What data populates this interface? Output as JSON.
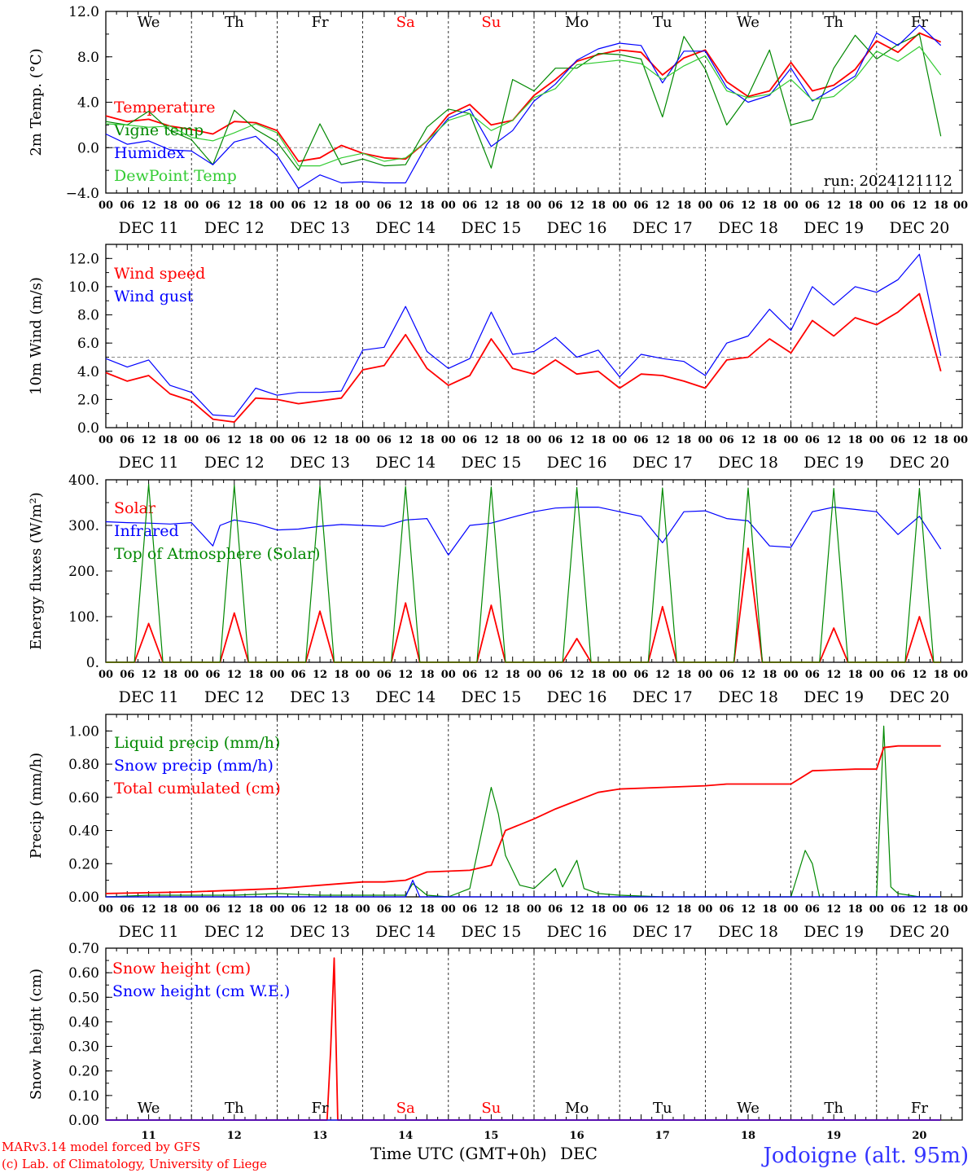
{
  "colors": {
    "red": "#ff0000",
    "blue": "#0000ff",
    "green": "#008800",
    "lightgreen": "#33cc33",
    "black": "#000000",
    "grey": "#888888"
  },
  "day_letters": [
    "We",
    "Th",
    "Fr",
    "Sa",
    "Su",
    "Mo",
    "Tu",
    "We",
    "Th",
    "Fr"
  ],
  "weekend_indices": [
    3,
    4
  ],
  "date_labels": [
    "DEC 11",
    "DEC 12",
    "DEC 13",
    "DEC 14",
    "DEC 15",
    "DEC 16",
    "DEC 17",
    "DEC 18",
    "DEC 19",
    "DEC 20"
  ],
  "hour_ticks": [
    "00",
    "06",
    "12",
    "18"
  ],
  "hour_end": "00",
  "bottom_day_numbers": [
    "11",
    "12",
    "13",
    "14",
    "15",
    "16",
    "17",
    "18",
    "19",
    "20"
  ],
  "footer": {
    "model": "MARv3.14 model forced by GFS",
    "copyright": "(c) Lab. of Climatology, University of Liege",
    "axis_title": "Time UTC (GMT+0h)",
    "month": "DEC",
    "station": "Jodoigne (alt. 95m)"
  },
  "chart_data": [
    {
      "type": "line",
      "ylabel": "2m Temp. (°C)",
      "ylim": [
        -4,
        12
      ],
      "yticks": [
        "12.0",
        "8.0",
        "4.0",
        "0.0",
        "−4.0"
      ],
      "reference_line": 0,
      "annotation": "run: 2024121112",
      "x_unit": "hours from 2024-12-11 00 UTC",
      "series": [
        {
          "name": "Temperature",
          "color": "red",
          "x": [
            0,
            6,
            12,
            18,
            24,
            30,
            36,
            42,
            48,
            54,
            60,
            66,
            72,
            78,
            84,
            90,
            96,
            102,
            108,
            114,
            120,
            126,
            132,
            138,
            144,
            150,
            156,
            162,
            168,
            174,
            180,
            186,
            192,
            198,
            204,
            210,
            216,
            222,
            228,
            234
          ],
          "y": [
            2.8,
            2.3,
            2.5,
            1.9,
            1.6,
            1.2,
            2.3,
            2.2,
            1.5,
            -1.2,
            -0.9,
            0.2,
            -0.5,
            -0.9,
            -1.0,
            0.6,
            2.9,
            3.8,
            2.0,
            2.4,
            4.6,
            6.0,
            7.6,
            8.2,
            8.6,
            8.4,
            6.4,
            7.9,
            8.6,
            5.8,
            4.5,
            5.0,
            7.5,
            5.0,
            5.5,
            6.9,
            9.4,
            8.4,
            10.1,
            9.3
          ]
        },
        {
          "name": "Vigne temp",
          "color": "green",
          "x": [
            0,
            6,
            12,
            18,
            24,
            30,
            36,
            42,
            48,
            54,
            60,
            66,
            72,
            78,
            84,
            90,
            96,
            102,
            108,
            114,
            120,
            126,
            132,
            138,
            144,
            150,
            156,
            162,
            168,
            174,
            180,
            186,
            192,
            198,
            204,
            210,
            216,
            222,
            228,
            234
          ],
          "y": [
            2.3,
            2.0,
            3.2,
            1.5,
            0.7,
            -1.5,
            3.3,
            1.6,
            0.5,
            -2.0,
            2.1,
            -1.5,
            -1.0,
            -1.6,
            -1.5,
            1.8,
            3.4,
            3.0,
            -1.8,
            6.0,
            5.0,
            7.0,
            7.0,
            8.3,
            8.2,
            7.8,
            2.7,
            9.8,
            6.9,
            2.0,
            4.6,
            8.6,
            2.0,
            2.5,
            7.0,
            9.9,
            7.8,
            9.1,
            10.0,
            1.0
          ]
        },
        {
          "name": "Humidex",
          "color": "blue",
          "x": [
            0,
            6,
            12,
            18,
            24,
            30,
            36,
            42,
            48,
            54,
            60,
            66,
            72,
            78,
            84,
            90,
            96,
            102,
            108,
            114,
            120,
            126,
            132,
            138,
            144,
            150,
            156,
            162,
            168,
            174,
            180,
            186,
            192,
            198,
            204,
            210,
            216,
            222,
            228,
            234
          ],
          "y": [
            1.2,
            0.3,
            0.6,
            -0.2,
            -0.3,
            -1.5,
            0.5,
            1.0,
            -0.7,
            -3.6,
            -2.4,
            -3.1,
            -3.0,
            -3.1,
            -3.1,
            0.3,
            2.6,
            3.4,
            0.1,
            1.5,
            4.1,
            5.6,
            7.7,
            8.7,
            9.2,
            9.0,
            5.7,
            8.5,
            8.5,
            5.3,
            4.0,
            4.6,
            7.0,
            4.1,
            5.2,
            6.3,
            10.1,
            9.0,
            10.8,
            9.0
          ]
        },
        {
          "name": "DewPoint Temp",
          "color": "lightgreen",
          "x": [
            0,
            6,
            12,
            18,
            24,
            30,
            36,
            42,
            48,
            54,
            60,
            66,
            72,
            78,
            84,
            90,
            96,
            102,
            108,
            114,
            120,
            126,
            132,
            138,
            144,
            150,
            156,
            162,
            168,
            174,
            180,
            186,
            192,
            198,
            204,
            210,
            216,
            222,
            228,
            234
          ],
          "y": [
            2.1,
            2.0,
            1.8,
            1.9,
            0.9,
            0.6,
            1.3,
            2.1,
            1.3,
            -1.6,
            -1.6,
            -0.9,
            -0.5,
            -1.2,
            -0.9,
            0.6,
            2.4,
            3.0,
            1.5,
            2.4,
            4.4,
            5.2,
            7.3,
            7.5,
            7.7,
            7.4,
            6.0,
            7.2,
            8.1,
            5.0,
            4.4,
            4.7,
            6.0,
            4.2,
            4.5,
            6.1,
            8.5,
            7.6,
            8.9,
            6.4
          ]
        }
      ]
    },
    {
      "type": "line",
      "ylabel": "10m Wind (m/s)",
      "ylim": [
        0,
        13
      ],
      "yticks": [
        "12.0",
        "10.0",
        "8.0",
        "6.0",
        "4.0",
        "2.0",
        "0.0"
      ],
      "reference_line": 5,
      "series": [
        {
          "name": "Wind speed",
          "color": "red",
          "x": [
            0,
            6,
            12,
            18,
            24,
            30,
            36,
            42,
            48,
            54,
            60,
            66,
            72,
            78,
            84,
            90,
            96,
            102,
            108,
            114,
            120,
            126,
            132,
            138,
            144,
            150,
            156,
            162,
            168,
            174,
            180,
            186,
            192,
            198,
            204,
            210,
            216,
            222,
            228,
            234
          ],
          "y": [
            3.9,
            3.3,
            3.7,
            2.4,
            1.9,
            0.6,
            0.4,
            2.1,
            2.0,
            1.7,
            1.9,
            2.1,
            4.1,
            4.4,
            6.6,
            4.2,
            3.0,
            3.7,
            6.3,
            4.2,
            3.8,
            4.8,
            3.8,
            4.0,
            2.8,
            3.8,
            3.7,
            3.3,
            2.8,
            4.8,
            5.0,
            6.3,
            5.3,
            7.6,
            6.5,
            7.8,
            7.3,
            8.2,
            9.5,
            4.0
          ]
        },
        {
          "name": "Wind gust",
          "color": "blue",
          "x": [
            0,
            6,
            12,
            18,
            24,
            30,
            36,
            42,
            48,
            54,
            60,
            66,
            72,
            78,
            84,
            90,
            96,
            102,
            108,
            114,
            120,
            126,
            132,
            138,
            144,
            150,
            156,
            162,
            168,
            174,
            180,
            186,
            192,
            198,
            204,
            210,
            216,
            222,
            228,
            234
          ],
          "y": [
            4.9,
            4.3,
            4.8,
            3.0,
            2.5,
            0.9,
            0.8,
            2.8,
            2.3,
            2.5,
            2.5,
            2.6,
            5.5,
            5.7,
            8.6,
            5.4,
            4.2,
            4.9,
            8.2,
            5.2,
            5.4,
            6.4,
            5.0,
            5.5,
            3.6,
            5.2,
            4.9,
            4.7,
            3.7,
            6.0,
            6.5,
            8.4,
            6.9,
            10.0,
            8.7,
            10.0,
            9.6,
            10.5,
            12.3,
            5.1
          ]
        }
      ]
    },
    {
      "type": "line",
      "ylabel": "Energy fluxes (W/m²)",
      "ylim": [
        0,
        400
      ],
      "yticks": [
        "400.",
        "300.",
        "200.",
        "100.",
        "0."
      ],
      "series": [
        {
          "name": "Solar",
          "color": "red",
          "x": [
            0,
            6,
            8,
            12,
            16,
            18,
            30,
            32,
            36,
            40,
            42,
            54,
            56,
            60,
            64,
            66,
            78,
            80,
            84,
            88,
            90,
            102,
            104,
            108,
            112,
            114,
            126,
            128,
            132,
            136,
            138,
            150,
            152,
            156,
            160,
            162,
            174,
            176,
            180,
            184,
            186,
            198,
            200,
            204,
            208,
            210,
            222,
            224,
            228,
            232,
            234
          ],
          "y": [
            0,
            0,
            0,
            85,
            0,
            0,
            0,
            0,
            108,
            0,
            0,
            0,
            0,
            112,
            0,
            0,
            0,
            0,
            130,
            0,
            0,
            0,
            0,
            125,
            0,
            0,
            0,
            0,
            52,
            0,
            0,
            0,
            0,
            122,
            0,
            0,
            0,
            0,
            250,
            0,
            0,
            0,
            0,
            75,
            0,
            0,
            0,
            0,
            100,
            0,
            0
          ]
        },
        {
          "name": "Infrared",
          "color": "blue",
          "x": [
            0,
            6,
            12,
            18,
            24,
            30,
            32,
            36,
            42,
            48,
            54,
            60,
            66,
            72,
            78,
            84,
            90,
            96,
            102,
            108,
            114,
            120,
            126,
            132,
            138,
            144,
            150,
            156,
            162,
            168,
            174,
            180,
            186,
            192,
            198,
            204,
            210,
            216,
            222,
            228,
            234
          ],
          "y": [
            308,
            306,
            305,
            303,
            306,
            255,
            300,
            312,
            304,
            290,
            292,
            298,
            302,
            300,
            298,
            312,
            315,
            235,
            300,
            305,
            318,
            330,
            338,
            340,
            340,
            330,
            320,
            262,
            330,
            332,
            315,
            310,
            255,
            252,
            330,
            340,
            335,
            330,
            280,
            320,
            248
          ]
        },
        {
          "name": "Top of Atmosphere (Solar)",
          "color": "green",
          "x": [
            0,
            8,
            12,
            16,
            18,
            32,
            36,
            40,
            42,
            56,
            60,
            64,
            66,
            80,
            84,
            88,
            90,
            104,
            108,
            112,
            114,
            128,
            132,
            136,
            138,
            152,
            156,
            160,
            162,
            176,
            180,
            184,
            186,
            200,
            204,
            208,
            210,
            224,
            228,
            232,
            234
          ],
          "y": [
            0,
            0,
            390,
            0,
            0,
            0,
            388,
            0,
            0,
            0,
            387,
            0,
            0,
            0,
            385,
            0,
            0,
            0,
            384,
            0,
            0,
            0,
            383,
            0,
            0,
            0,
            382,
            0,
            0,
            0,
            382,
            0,
            0,
            0,
            381,
            0,
            0,
            0,
            381,
            0,
            0
          ]
        }
      ]
    },
    {
      "type": "line",
      "ylabel": "Precip (mm/h)",
      "ylim": [
        0,
        1.1
      ],
      "yticks": [
        "1.00",
        "0.80",
        "0.60",
        "0.40",
        "0.20",
        "0.00"
      ],
      "series": [
        {
          "name": "Liquid precip (mm/h)",
          "color": "green",
          "x": [
            0,
            12,
            24,
            36,
            48,
            60,
            72,
            84,
            86,
            90,
            96,
            102,
            108,
            110,
            112,
            116,
            120,
            126,
            128,
            132,
            134,
            138,
            144,
            156,
            168,
            192,
            196,
            198,
            200,
            202,
            216,
            218,
            220,
            222,
            228,
            234
          ],
          "y": [
            0,
            0.01,
            0.01,
            0.01,
            0.02,
            0.01,
            0.01,
            0.01,
            0.08,
            0.01,
            0.0,
            0.05,
            0.66,
            0.5,
            0.25,
            0.07,
            0.05,
            0.17,
            0.06,
            0.22,
            0.05,
            0.02,
            0.01,
            0.0,
            0.0,
            0.0,
            0.28,
            0.2,
            0.0,
            0.0,
            0.0,
            1.03,
            0.06,
            0.02,
            0.0,
            0.0
          ]
        },
        {
          "name": "Snow precip (mm/h)",
          "color": "blue",
          "x": [
            0,
            72,
            84,
            86,
            88,
            96,
            234
          ],
          "y": [
            0,
            0,
            0.0,
            0.1,
            0.0,
            0.0,
            0.0
          ]
        },
        {
          "name": "Total cumulated (cm)",
          "color": "red",
          "x": [
            0,
            24,
            48,
            72,
            78,
            84,
            90,
            102,
            108,
            112,
            120,
            126,
            132,
            138,
            144,
            156,
            168,
            174,
            192,
            198,
            210,
            216,
            218,
            222,
            234
          ],
          "y": [
            0.02,
            0.03,
            0.05,
            0.09,
            0.09,
            0.1,
            0.15,
            0.16,
            0.19,
            0.4,
            0.47,
            0.53,
            0.58,
            0.63,
            0.65,
            0.66,
            0.67,
            0.68,
            0.68,
            0.76,
            0.77,
            0.77,
            0.9,
            0.91,
            0.91
          ]
        }
      ]
    },
    {
      "type": "line",
      "ylabel": "Snow height (cm)",
      "ylim": [
        0,
        0.7
      ],
      "yticks": [
        "0.70",
        "0.60",
        "0.50",
        "0.40",
        "0.30",
        "0.20",
        "0.10",
        "0.00"
      ],
      "series": [
        {
          "name": "Snow height (cm)",
          "color": "red",
          "x": [
            0,
            62,
            63,
            64,
            65,
            234
          ],
          "y": [
            0,
            0,
            0.28,
            0.66,
            0,
            0
          ]
        },
        {
          "name": "Snow height (cm W.E.)",
          "color": "blue",
          "x": [
            0,
            234
          ],
          "y": [
            0,
            0
          ]
        }
      ]
    }
  ]
}
